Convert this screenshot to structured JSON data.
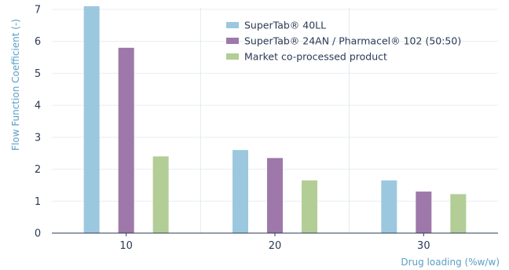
{
  "chart_data": {
    "type": "bar",
    "title": "",
    "xlabel": "Drug loading (%w/w)",
    "ylabel": "Flow Function Coefficient (-)",
    "ylim": [
      0,
      7
    ],
    "yticks": [
      "0",
      "1",
      "2",
      "3",
      "4",
      "5",
      "6",
      "7"
    ],
    "categories": [
      "10",
      "20",
      "30"
    ],
    "grid": "vertical separators and horizontal gridlines",
    "legend_position": "top-center",
    "series": [
      {
        "name": "SuperTab® 40LL",
        "values": [
          7.1,
          2.6,
          1.65
        ],
        "color": "#9cc8df"
      },
      {
        "name": "SuperTab® 24AN / Pharmacel® 102 (50:50)",
        "values": [
          5.8,
          2.35,
          1.3
        ],
        "color": "#9e78aa"
      },
      {
        "name": "Market co-processed product",
        "values": [
          2.4,
          1.65,
          1.22
        ],
        "color": "#b2cd96"
      }
    ]
  }
}
